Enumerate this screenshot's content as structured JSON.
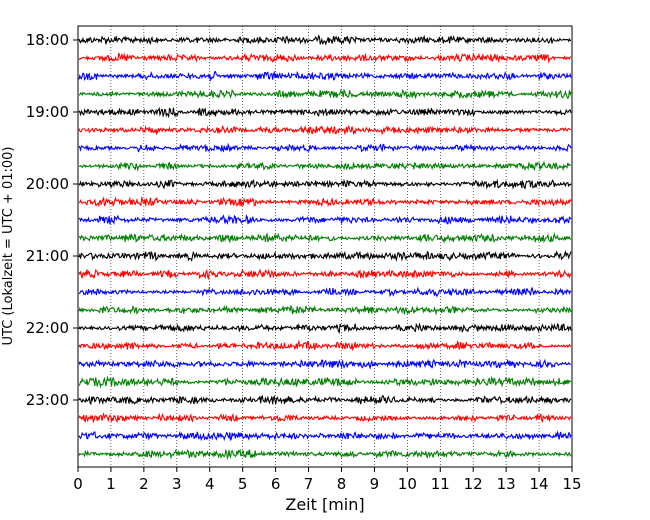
{
  "chart_data": {
    "type": "line",
    "title": "",
    "xlabel": "Zeit  [min]",
    "ylabel": "UTC (Lokalzeit = UTC + 01:00)",
    "xlim": [
      0,
      15
    ],
    "xticks": [
      0,
      1,
      2,
      3,
      4,
      5,
      6,
      7,
      8,
      9,
      10,
      11,
      12,
      13,
      14,
      15
    ],
    "vertical_grid": "dotted at each minute",
    "y_tick_labels": [
      "18:00",
      "19:00",
      "20:00",
      "21:00",
      "22:00",
      "23:00"
    ],
    "trace_start_times": [
      "18:00",
      "18:15",
      "18:30",
      "18:45",
      "19:00",
      "19:15",
      "19:30",
      "19:45",
      "20:00",
      "20:15",
      "20:30",
      "20:45",
      "21:00",
      "21:15",
      "21:30",
      "21:45",
      "22:00",
      "22:15",
      "22:30",
      "22:45",
      "23:00",
      "23:15",
      "23:30",
      "23:45"
    ],
    "trace_color_cycle": [
      "#000000",
      "#ff0000",
      "#0000ff",
      "#008000"
    ],
    "trace_minutes_per_line": 15,
    "trace_count": 24
  }
}
